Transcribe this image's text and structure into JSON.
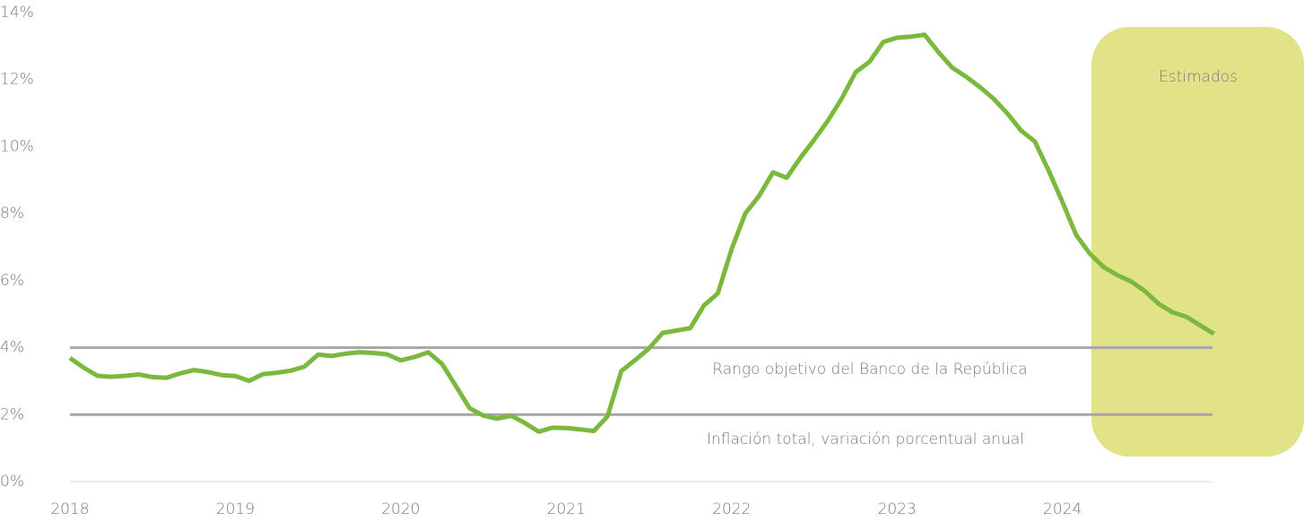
{
  "chart_data": {
    "type": "line",
    "categories": [
      "2018",
      null,
      null,
      null,
      null,
      null,
      null,
      null,
      null,
      null,
      null,
      null,
      "2019",
      null,
      null,
      null,
      null,
      null,
      null,
      null,
      null,
      null,
      null,
      null,
      "2020",
      null,
      null,
      null,
      null,
      null,
      null,
      null,
      null,
      null,
      null,
      null,
      "2021",
      null,
      null,
      null,
      null,
      null,
      null,
      null,
      null,
      null,
      null,
      null,
      "2022",
      null,
      null,
      null,
      null,
      null,
      null,
      null,
      null,
      null,
      null,
      null,
      "2023",
      null,
      null,
      null,
      null,
      null,
      null,
      null,
      null,
      null,
      null,
      null,
      "2024",
      null,
      null,
      null,
      null,
      null,
      null,
      null,
      null,
      null,
      null,
      null
    ],
    "series": [
      {
        "color": "#7ab93d",
        "values": [
          3.69,
          3.4,
          3.16,
          3.13,
          3.16,
          3.2,
          3.12,
          3.1,
          3.23,
          3.33,
          3.27,
          3.18,
          3.15,
          3.01,
          3.21,
          3.25,
          3.31,
          3.43,
          3.79,
          3.75,
          3.82,
          3.86,
          3.84,
          3.8,
          3.62,
          3.72,
          3.86,
          3.51,
          2.85,
          2.19,
          1.97,
          1.88,
          1.97,
          1.75,
          1.49,
          1.61,
          1.6,
          1.56,
          1.51,
          1.95,
          3.3,
          3.63,
          3.97,
          4.44,
          4.51,
          4.58,
          5.26,
          5.62,
          6.94,
          8.01,
          8.53,
          9.23,
          9.07,
          9.67,
          10.21,
          10.78,
          11.44,
          12.22,
          12.53,
          13.12,
          13.25,
          13.28,
          13.34,
          12.82,
          12.36,
          12.09,
          11.78,
          11.43,
          10.99,
          10.48,
          10.15,
          9.28,
          8.35,
          7.36,
          6.8,
          6.4,
          6.16,
          5.97,
          5.68,
          5.3,
          5.05,
          4.92,
          4.66,
          4.41
        ]
      }
    ],
    "reference_lines": [
      {
        "value": 4,
        "color": "#a6a6a6"
      },
      {
        "value": 2,
        "color": "#a6a6a6"
      }
    ],
    "annotations": [
      "Rango objetivo del  Banco de la República",
      "Inflación total, variación porcentual anual"
    ],
    "shaded_region_label": "Estimados",
    "ylim": [
      0,
      14
    ],
    "yticks": [
      {
        "value": 0,
        "label": "0%"
      },
      {
        "value": 2,
        "label": "2%"
      },
      {
        "value": 4,
        "label": "4%"
      },
      {
        "value": 6,
        "label": "6%"
      },
      {
        "value": 8,
        "label": "8%"
      },
      {
        "value": 10,
        "label": "10%"
      },
      {
        "value": 12,
        "label": "12%"
      },
      {
        "value": 14,
        "label": "14%"
      }
    ]
  }
}
